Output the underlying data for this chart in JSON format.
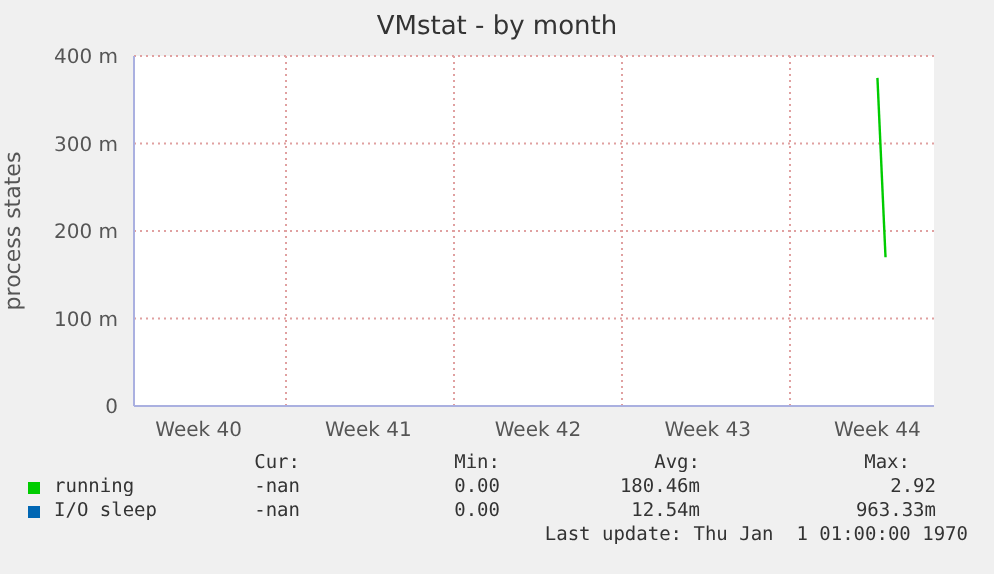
{
  "chart_data": {
    "type": "line",
    "title": "VMstat - by month",
    "ylabel": "process states",
    "categories": [
      null,
      null,
      null,
      null,
      null,
      null,
      null,
      null,
      "Week 40",
      null,
      null,
      null,
      null,
      null,
      null,
      null,
      null,
      null,
      null,
      null,
      null,
      null,
      null,
      null,
      null,
      null,
      null,
      null,
      null,
      "Week 41",
      null,
      null,
      null,
      null,
      null,
      null,
      null,
      null,
      null,
      null,
      null,
      null,
      null,
      null,
      null,
      null,
      null,
      null,
      null,
      null,
      "Week 42",
      null,
      null,
      null,
      null,
      null,
      null,
      null,
      null,
      null,
      null,
      null,
      null,
      null,
      null,
      null,
      null,
      null,
      null,
      null,
      null,
      "Week 43",
      null,
      null,
      null,
      null,
      null,
      null,
      null,
      null,
      null,
      null,
      null,
      null,
      null,
      null,
      null,
      null,
      null,
      null,
      null,
      null,
      "Week 44",
      null,
      null,
      null,
      null,
      null,
      null,
      null
    ],
    "ylim": [
      0,
      400
    ],
    "yticks": [
      0,
      {
        "value": 100,
        "label": "100 m"
      },
      {
        "value": 200,
        "label": "200 m"
      },
      {
        "value": 300,
        "label": "300 m"
      },
      {
        "value": 400,
        "label": "400 m"
      }
    ],
    "series": [
      {
        "name": "running",
        "color": "#00cc00",
        "values": [
          null,
          null,
          null,
          null,
          null,
          null,
          null,
          null,
          null,
          null,
          null,
          null,
          null,
          null,
          null,
          null,
          null,
          null,
          null,
          null,
          null,
          null,
          null,
          null,
          null,
          null,
          null,
          null,
          null,
          null,
          null,
          null,
          null,
          null,
          null,
          null,
          null,
          null,
          null,
          null,
          null,
          null,
          null,
          null,
          null,
          null,
          null,
          null,
          null,
          null,
          null,
          null,
          null,
          null,
          null,
          null,
          null,
          null,
          null,
          null,
          null,
          null,
          null,
          null,
          null,
          null,
          null,
          null,
          null,
          null,
          null,
          null,
          null,
          null,
          null,
          null,
          null,
          null,
          null,
          null,
          null,
          null,
          null,
          null,
          null,
          null,
          null,
          null,
          null,
          null,
          null,
          null,
          375,
          170,
          null,
          null,
          null,
          null,
          null,
          null
        ]
      },
      {
        "name": "I/O sleep",
        "color": "#0066b3",
        "values": [
          null,
          null,
          null,
          null,
          null,
          null,
          null,
          null,
          null,
          null,
          null,
          null,
          null,
          null,
          null,
          null,
          null,
          null,
          null,
          null,
          null,
          null,
          null,
          null,
          null,
          null,
          null,
          null,
          null,
          null,
          null,
          null,
          null,
          null,
          null,
          null,
          null,
          null,
          null,
          null,
          null,
          null,
          null,
          null,
          null,
          null,
          null,
          null,
          null,
          null,
          null,
          null,
          null,
          null,
          null,
          null,
          null,
          null,
          null,
          null,
          null,
          null,
          null,
          null,
          null,
          null,
          null,
          null,
          null,
          null,
          null,
          null,
          null,
          null,
          null,
          null,
          null,
          null,
          null,
          null,
          null,
          null,
          null,
          null,
          null,
          null,
          null,
          null,
          null,
          null,
          null,
          null,
          null,
          null,
          null,
          null,
          null,
          null,
          null,
          null
        ]
      }
    ],
    "annotations": [
      "Cur:",
      "Min:",
      "Avg:",
      "Max:",
      "-nan",
      "0.00",
      "180.46m",
      "2.92",
      "-nan",
      "0.00",
      "12.54m",
      "963.33m",
      "Last update: Thu Jan  1 01:00:00 1970"
    ],
    "grid": true,
    "legend": "bottom",
    "marker": "none",
    "line_style": "solid"
  }
}
